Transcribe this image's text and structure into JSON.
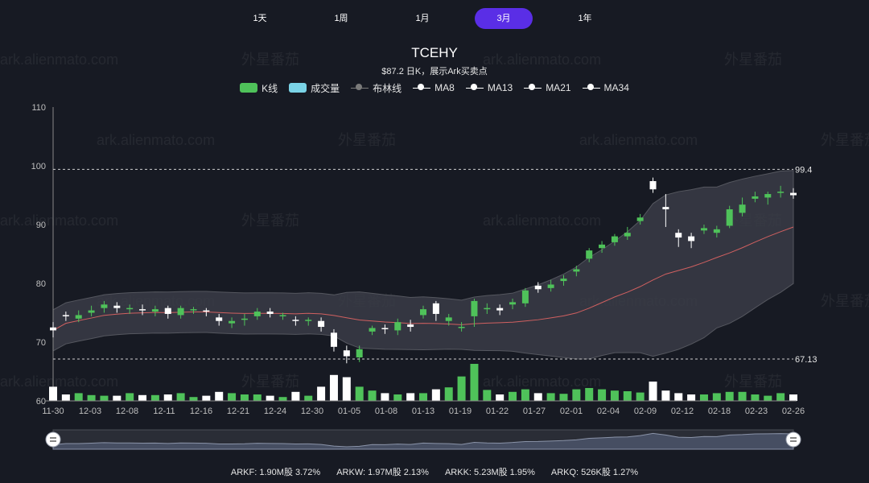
{
  "tabs": [
    {
      "label": "1天",
      "active": false
    },
    {
      "label": "1周",
      "active": false
    },
    {
      "label": "1月",
      "active": false
    },
    {
      "label": "3月",
      "active": true
    },
    {
      "label": "1年",
      "active": false
    }
  ],
  "header": {
    "title": "TCEHY",
    "subtitle": "$87.2  日K，展示Ark买卖点"
  },
  "legend": [
    {
      "label": "K线",
      "kind": "rect",
      "color": "#4fc25a"
    },
    {
      "label": "成交量",
      "kind": "rect",
      "color": "#7ad3e6"
    },
    {
      "label": "布林线",
      "kind": "line",
      "color": "#7a7a7a"
    },
    {
      "label": "MA8",
      "kind": "line",
      "color": "#ffffff"
    },
    {
      "label": "MA13",
      "kind": "line",
      "color": "#ffffff"
    },
    {
      "label": "MA21",
      "kind": "line",
      "color": "#ffffff"
    },
    {
      "label": "MA34",
      "kind": "line",
      "color": "#ffffff"
    }
  ],
  "watermarks": [
    "ark.alienmato.com",
    "外星番茄"
  ],
  "holdings": [
    {
      "fund": "ARKF:",
      "value": "1.90M股 3.72%"
    },
    {
      "fund": "ARKW:",
      "value": "1.97M股 2.13%"
    },
    {
      "fund": "ARKK:",
      "value": "5.23M股 1.95%"
    },
    {
      "fund": "ARKQ:",
      "value": "526K股 1.27%"
    }
  ],
  "colors": {
    "up": "#4fc25a",
    "down": "#ffffff",
    "buy_marker": "#a4d39a",
    "sell_marker": "#e07c7c",
    "band_fill": "#3a3c46",
    "ma_line": "#d06060"
  },
  "chart_data": {
    "type": "candlestick",
    "ylim": [
      60,
      110
    ],
    "yticks": [
      60,
      70,
      80,
      90,
      100,
      110
    ],
    "xtick_labels": [
      "11-30",
      "12-03",
      "12-08",
      "12-11",
      "12-16",
      "12-21",
      "12-24",
      "12-30",
      "01-05",
      "01-08",
      "01-13",
      "01-19",
      "01-22",
      "01-27",
      "02-01",
      "02-04",
      "02-09",
      "02-12",
      "02-18",
      "02-23",
      "02-26"
    ],
    "reference_lines": [
      {
        "value": 99.4,
        "label": "99.4"
      },
      {
        "value": 67.13,
        "label": "67.13"
      }
    ],
    "candles": [
      {
        "date": "11-30",
        "o": 72.5,
        "c": 72.0,
        "h": 73.4,
        "l": 70.8,
        "v": 22
      },
      {
        "date": "12-01",
        "o": 74.6,
        "c": 74.4,
        "h": 75.2,
        "l": 73.6,
        "v": 10
      },
      {
        "date": "12-02",
        "o": 74.0,
        "c": 74.6,
        "h": 75.4,
        "l": 73.4,
        "v": 12
      },
      {
        "date": "12-03",
        "o": 75.0,
        "c": 75.4,
        "h": 76.2,
        "l": 74.4,
        "v": 9
      },
      {
        "date": "12-04",
        "o": 75.8,
        "c": 76.4,
        "h": 77.0,
        "l": 75.0,
        "v": 8
      },
      {
        "date": "12-07",
        "o": 76.2,
        "c": 75.8,
        "h": 76.8,
        "l": 75.0,
        "v": 8
      },
      {
        "date": "12-08",
        "o": 75.6,
        "c": 75.8,
        "h": 76.4,
        "l": 74.8,
        "v": 12
      },
      {
        "date": "12-09",
        "o": 75.6,
        "c": 75.4,
        "h": 76.4,
        "l": 74.6,
        "v": 9
      },
      {
        "date": "12-10",
        "o": 75.2,
        "c": 75.6,
        "h": 76.2,
        "l": 74.4,
        "v": 9
      },
      {
        "date": "12-11",
        "o": 75.8,
        "c": 74.8,
        "h": 76.2,
        "l": 74.0,
        "v": 10
      },
      {
        "date": "12-14",
        "o": 74.6,
        "c": 75.8,
        "h": 76.2,
        "l": 74.0,
        "v": 12
      },
      {
        "date": "12-15",
        "o": 75.6,
        "c": 75.6,
        "h": 76.0,
        "l": 74.8,
        "v": 6
      },
      {
        "date": "12-16",
        "o": 75.4,
        "c": 75.2,
        "h": 75.8,
        "l": 74.4,
        "v": 8
      },
      {
        "date": "12-17",
        "o": 74.2,
        "c": 73.6,
        "h": 74.8,
        "l": 72.8,
        "v": 14
      },
      {
        "date": "12-18",
        "o": 73.2,
        "c": 73.6,
        "h": 74.2,
        "l": 72.4,
        "v": 12
      },
      {
        "date": "12-21",
        "o": 73.8,
        "c": 74.0,
        "h": 74.8,
        "l": 72.8,
        "v": 10
      },
      {
        "date": "12-22",
        "o": 74.4,
        "c": 75.2,
        "h": 75.8,
        "l": 73.8,
        "v": 10
      },
      {
        "date": "12-23",
        "o": 75.2,
        "c": 74.8,
        "h": 75.8,
        "l": 74.2,
        "v": 8
      },
      {
        "date": "12-24",
        "o": 74.4,
        "c": 74.6,
        "h": 75.0,
        "l": 73.8,
        "v": 6
      },
      {
        "date": "12-28",
        "o": 73.8,
        "c": 73.6,
        "h": 74.4,
        "l": 72.8,
        "v": 14
      },
      {
        "date": "12-29",
        "o": 73.6,
        "c": 73.8,
        "h": 74.2,
        "l": 72.8,
        "v": 8
      },
      {
        "date": "12-30",
        "o": 73.6,
        "c": 72.6,
        "h": 74.2,
        "l": 71.8,
        "v": 22
      },
      {
        "date": "12-31",
        "o": 71.6,
        "c": 69.2,
        "h": 72.2,
        "l": 68.4,
        "v": 35
      },
      {
        "date": "01-04",
        "o": 68.6,
        "c": 67.6,
        "h": 69.4,
        "l": 66.4,
        "v": 32
      },
      {
        "date": "01-05",
        "o": 67.4,
        "c": 68.8,
        "h": 69.4,
        "l": 66.6,
        "v": 22
      },
      {
        "date": "01-06",
        "o": 71.8,
        "c": 72.4,
        "h": 72.8,
        "l": 71.2,
        "v": 16
      },
      {
        "date": "01-07",
        "o": 72.4,
        "c": 72.2,
        "h": 73.0,
        "l": 71.4,
        "v": 12
      },
      {
        "date": "01-08",
        "o": 72.0,
        "c": 73.4,
        "h": 74.0,
        "l": 71.2,
        "v": 10
      },
      {
        "date": "01-11",
        "o": 73.0,
        "c": 72.6,
        "h": 73.8,
        "l": 71.8,
        "v": 12
      },
      {
        "date": "01-12",
        "o": 74.6,
        "c": 75.6,
        "h": 76.2,
        "l": 74.0,
        "v": 12
      },
      {
        "date": "01-13",
        "o": 76.6,
        "c": 74.8,
        "h": 77.0,
        "l": 73.6,
        "v": 18
      },
      {
        "date": "01-14",
        "o": 73.6,
        "c": 74.2,
        "h": 74.8,
        "l": 72.8,
        "v": 21
      },
      {
        "date": "01-15",
        "o": 72.4,
        "c": 72.6,
        "h": 73.4,
        "l": 71.8,
        "v": 33
      },
      {
        "date": "01-19",
        "o": 74.4,
        "c": 77.0,
        "h": 77.4,
        "l": 72.6,
        "v": 50
      },
      {
        "date": "01-20",
        "o": 75.6,
        "c": 75.8,
        "h": 76.6,
        "l": 74.8,
        "v": 17
      },
      {
        "date": "01-21",
        "o": 75.8,
        "c": 75.4,
        "h": 76.4,
        "l": 74.6,
        "v": 10
      },
      {
        "date": "01-22",
        "o": 76.4,
        "c": 76.8,
        "h": 77.4,
        "l": 75.6,
        "v": 14
      },
      {
        "date": "01-25",
        "o": 76.6,
        "c": 78.8,
        "h": 79.2,
        "l": 76.0,
        "v": 18
      },
      {
        "date": "01-26",
        "o": 79.6,
        "c": 79.0,
        "h": 80.2,
        "l": 78.4,
        "v": 12
      },
      {
        "date": "01-27",
        "o": 79.2,
        "c": 79.8,
        "h": 80.6,
        "l": 78.6,
        "v": 12
      },
      {
        "date": "01-28",
        "o": 80.4,
        "c": 80.8,
        "h": 81.4,
        "l": 79.6,
        "v": 11
      },
      {
        "date": "02-01",
        "o": 82.0,
        "c": 82.4,
        "h": 83.0,
        "l": 81.2,
        "v": 18
      },
      {
        "date": "02-02",
        "o": 84.2,
        "c": 85.6,
        "h": 86.0,
        "l": 83.6,
        "v": 20
      },
      {
        "date": "02-03",
        "o": 86.0,
        "c": 86.6,
        "h": 87.2,
        "l": 85.2,
        "v": 18
      },
      {
        "date": "02-04",
        "o": 87.0,
        "c": 88.0,
        "h": 88.4,
        "l": 86.4,
        "v": 16
      },
      {
        "date": "02-05",
        "o": 88.0,
        "c": 88.6,
        "h": 89.6,
        "l": 87.4,
        "v": 15
      },
      {
        "date": "02-08",
        "o": 90.6,
        "c": 91.2,
        "h": 91.8,
        "l": 90.0,
        "v": 13
      },
      {
        "date": "02-09",
        "o": 97.4,
        "c": 96.0,
        "h": 98.0,
        "l": 95.4,
        "v": 30
      },
      {
        "date": "02-10",
        "o": 93.0,
        "c": 92.6,
        "h": 95.2,
        "l": 89.6,
        "v": 16
      },
      {
        "date": "02-11",
        "o": 88.6,
        "c": 87.8,
        "h": 89.2,
        "l": 86.2,
        "v": 12
      },
      {
        "date": "02-12",
        "o": 88.0,
        "c": 87.2,
        "h": 88.6,
        "l": 86.0,
        "v": 10
      },
      {
        "date": "02-16",
        "o": 89.0,
        "c": 89.4,
        "h": 90.0,
        "l": 88.4,
        "v": 10
      },
      {
        "date": "02-17",
        "o": 88.6,
        "c": 89.2,
        "h": 89.8,
        "l": 87.8,
        "v": 12
      },
      {
        "date": "02-18",
        "o": 89.8,
        "c": 92.6,
        "h": 93.2,
        "l": 89.4,
        "v": 14
      },
      {
        "date": "02-19",
        "o": 92.0,
        "c": 93.4,
        "h": 94.6,
        "l": 91.4,
        "v": 14
      },
      {
        "date": "02-22",
        "o": 94.4,
        "c": 94.8,
        "h": 95.6,
        "l": 93.8,
        "v": 10
      },
      {
        "date": "02-23",
        "o": 94.6,
        "c": 95.2,
        "h": 95.6,
        "l": 93.4,
        "v": 8
      },
      {
        "date": "02-24",
        "o": 95.4,
        "c": 95.6,
        "h": 96.6,
        "l": 94.6,
        "v": 12
      },
      {
        "date": "02-25",
        "o": 95.4,
        "c": 95.0,
        "h": 96.2,
        "l": 94.4,
        "v": 10
      }
    ]
  }
}
